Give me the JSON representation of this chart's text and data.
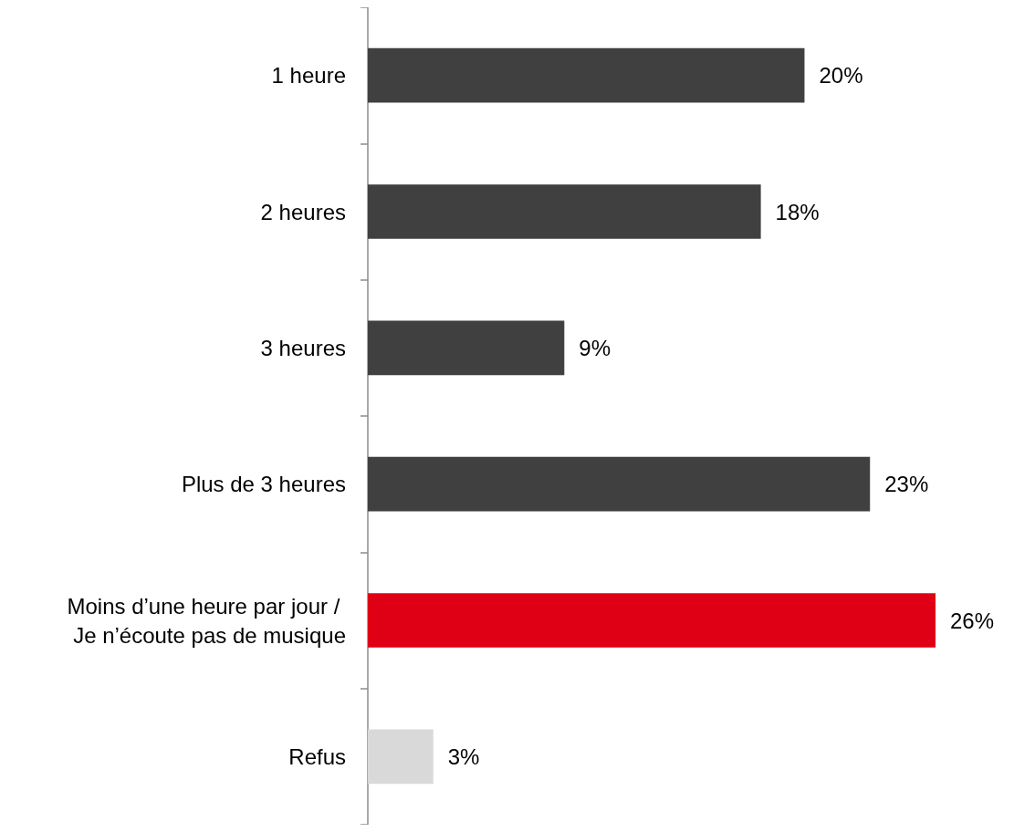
{
  "chart_data": {
    "type": "bar",
    "orientation": "horizontal",
    "categories": [
      "1 heure",
      "2 heures",
      "3 heures",
      "Plus de 3 heures",
      "Moins d’une heure par jour / Je n’écoute pas de musique",
      "Refus"
    ],
    "values": [
      20,
      18,
      9,
      23,
      26,
      3
    ],
    "colors": [
      "#404040",
      "#404040",
      "#404040",
      "#404040",
      "#e00016",
      "#d9d9d9"
    ],
    "value_labels": [
      "20%",
      "18%",
      "9%",
      "23%",
      "26%",
      "3%"
    ]
  }
}
